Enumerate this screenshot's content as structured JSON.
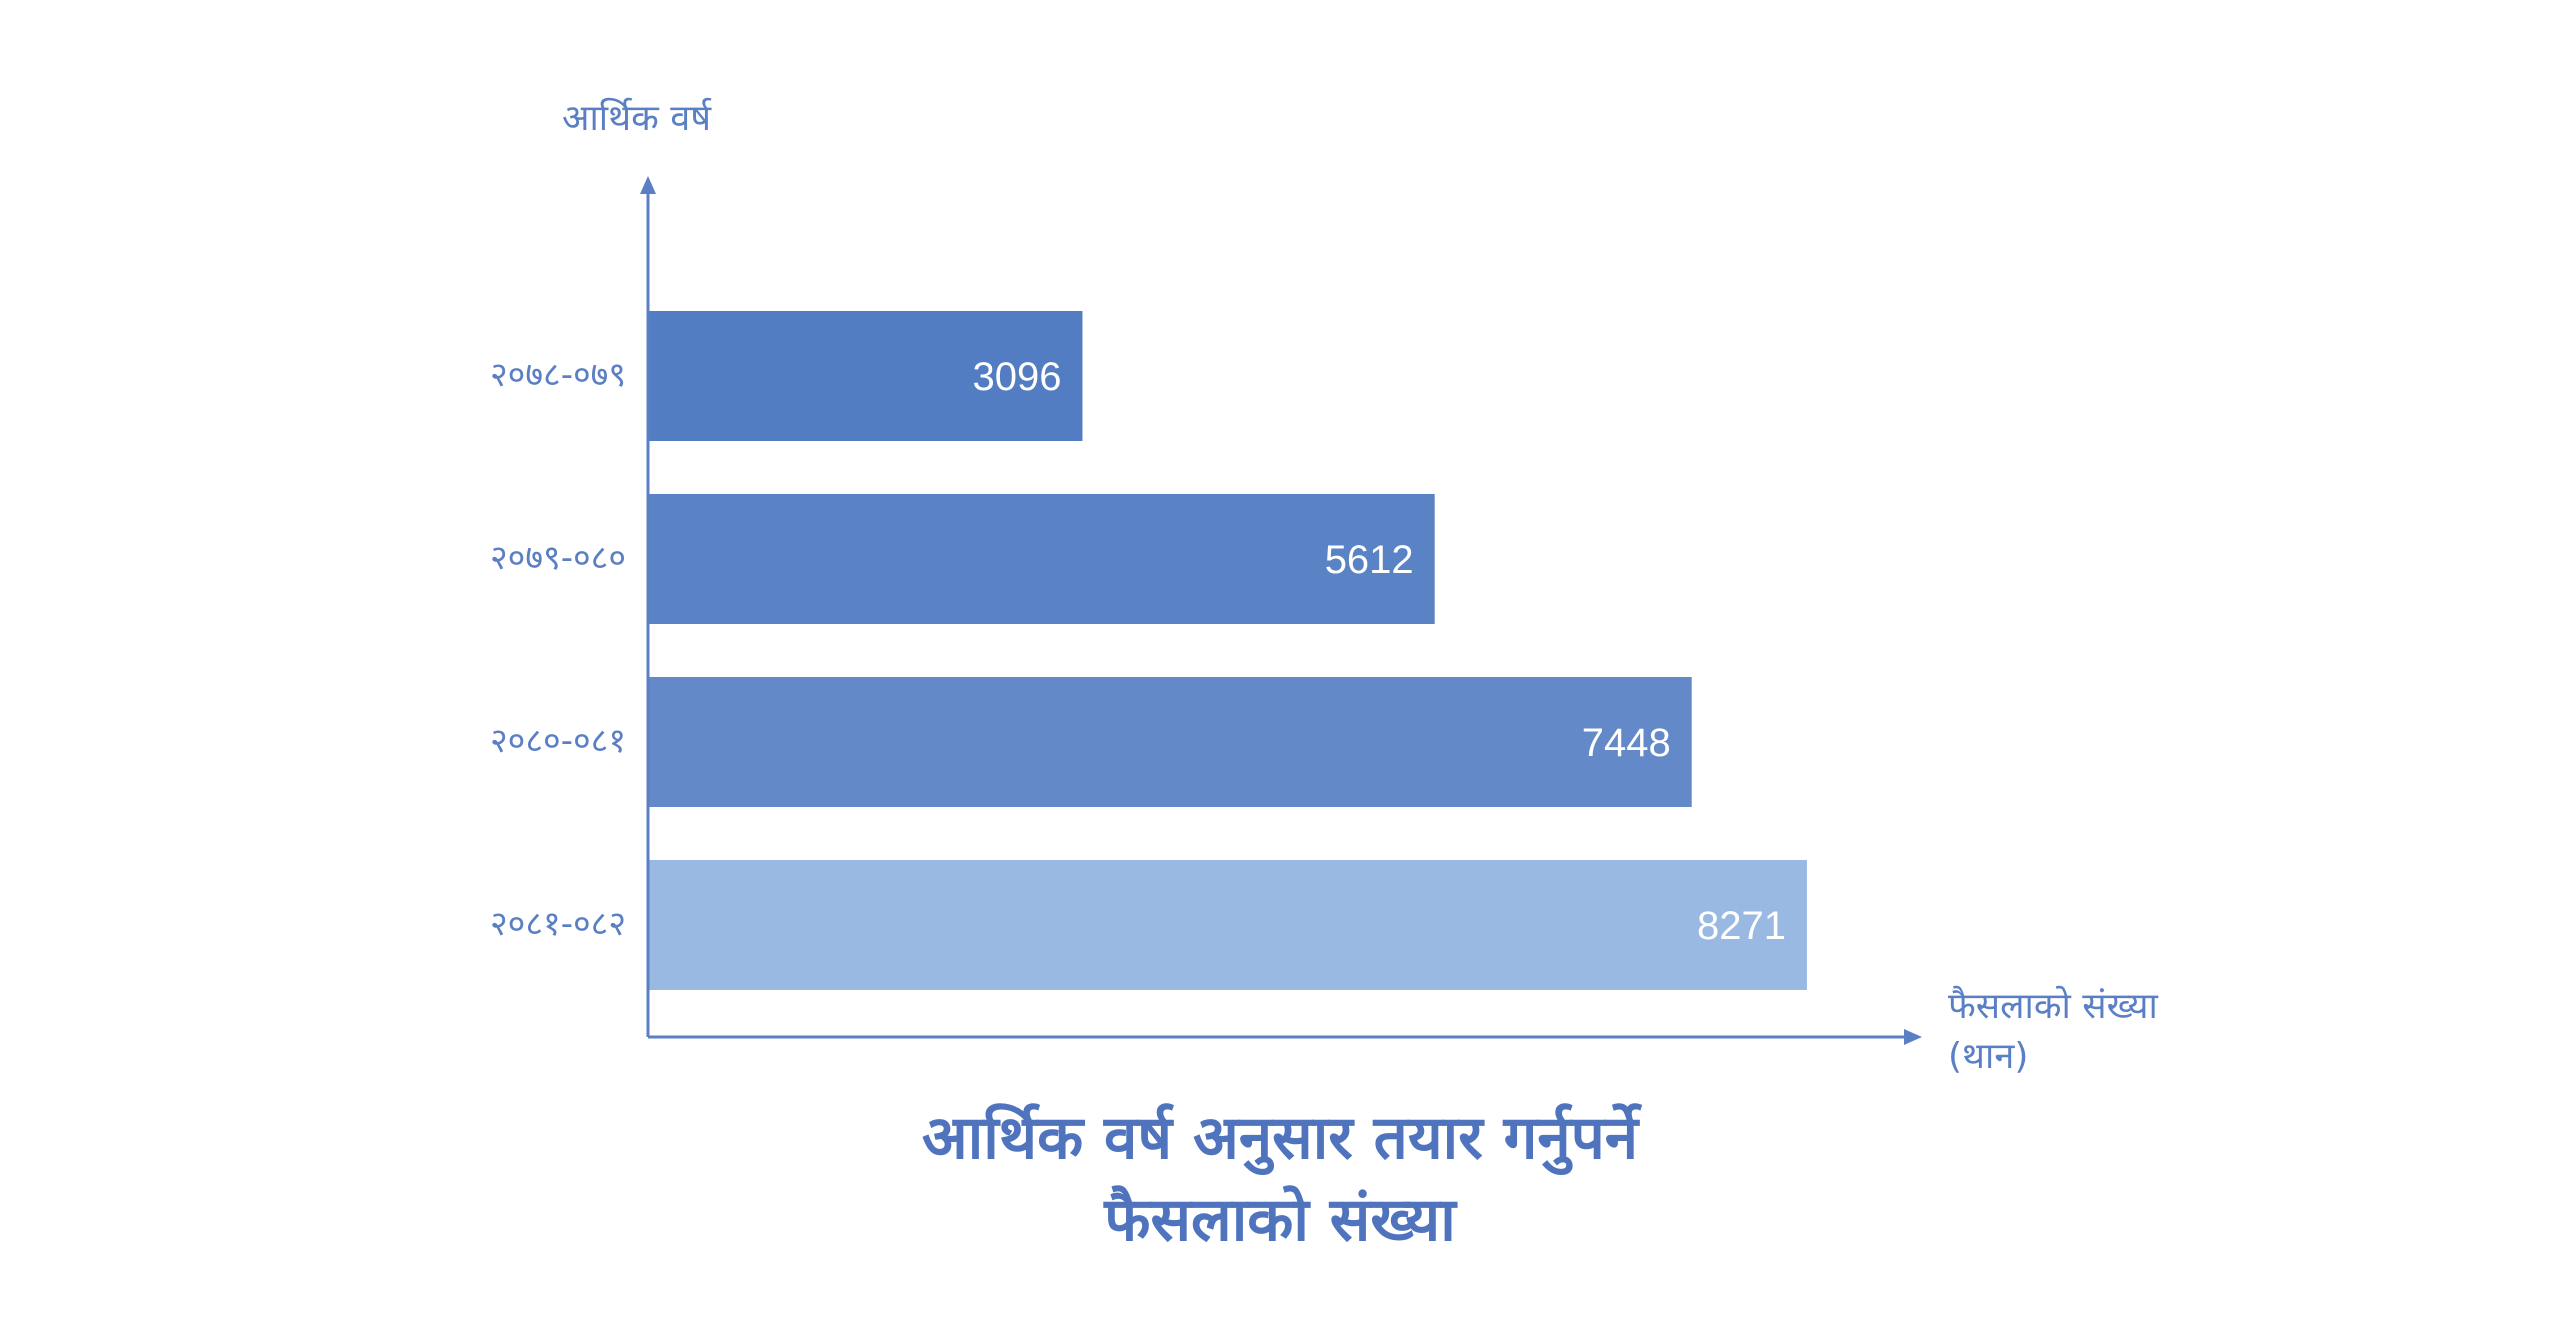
{
  "chart_data": {
    "type": "bar",
    "orientation": "horizontal",
    "title_lines": [
      "आर्थिक वर्ष अनुसार तयार गर्नुपर्ने",
      "फैसलाको संख्या"
    ],
    "ylabel": "आर्थिक वर्ष",
    "xlabel_lines": [
      "फैसलाको संख्या",
      "(थान)"
    ],
    "categories": [
      "२०७८-०७९",
      "२०७९-०८०",
      "२०८०-०८१",
      "२०८१-०८२"
    ],
    "values": [
      3096,
      5612,
      7448,
      8271
    ],
    "value_labels": [
      "3096",
      "5612",
      "7448",
      "8271"
    ],
    "xlim": [
      0,
      8800
    ],
    "grid": false,
    "colors": {
      "axis": "#5a7fc4",
      "bars": [
        "#527dc2",
        "#5a83c5",
        "#6489c8",
        "#9ab9e2"
      ],
      "value_text": "#ffffff",
      "title": "#4f74bd"
    }
  }
}
